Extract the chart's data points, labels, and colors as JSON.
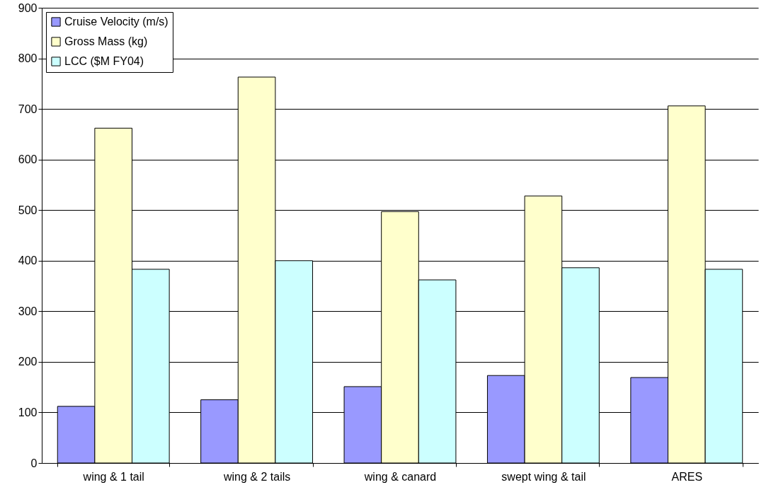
{
  "chart_data": {
    "type": "bar",
    "categories": [
      "wing & 1 tail",
      "wing & 2 tails",
      "wing & canard",
      "swept wing & tail",
      "ARES"
    ],
    "series": [
      {
        "name": "Cruise Velocity (m/s)",
        "color": "#9999ff",
        "values": [
          112,
          125,
          151,
          173,
          169
        ]
      },
      {
        "name": "Gross Mass (kg)",
        "color": "#ffffcc",
        "values": [
          662,
          763,
          497,
          528,
          706
        ]
      },
      {
        "name": "LCC ($M FY04)",
        "color": "#ccffff",
        "values": [
          383,
          400,
          362,
          386,
          383
        ]
      }
    ],
    "ylim": [
      0,
      900
    ],
    "yticks": [
      0,
      100,
      200,
      300,
      400,
      500,
      600,
      700,
      800,
      900
    ],
    "grid": "y",
    "legend": "top left"
  }
}
